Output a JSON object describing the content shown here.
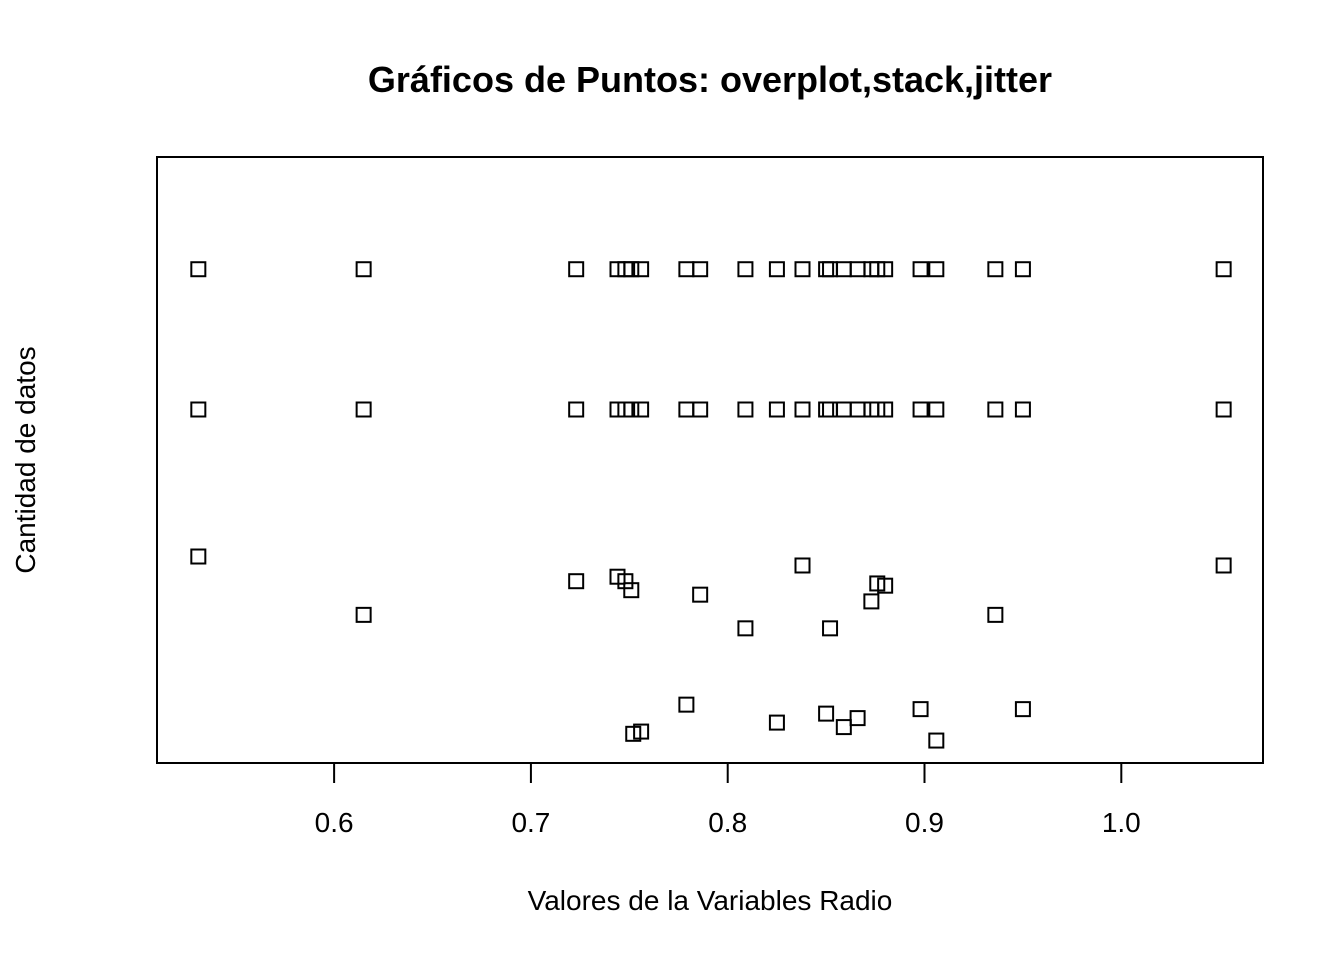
{
  "chart_data": {
    "type": "scatter",
    "title": "Gráficos de Puntos: overplot,stack,jitter",
    "xlabel": "Valores de la Variables Radio",
    "ylabel": "Cantidad de datos",
    "xlim": [
      0.51,
      1.072
    ],
    "x_ticks": [
      0.6,
      0.7,
      0.8,
      0.9,
      1.0
    ],
    "x_tick_labels": [
      "0.6",
      "0.7",
      "0.8",
      "0.9",
      "1.0"
    ],
    "ylim": [
      0.8,
      3.5
    ],
    "y_axis_shown": false,
    "grid": false,
    "legend": "none",
    "marker": "open-square",
    "series": [
      {
        "method": "overplot",
        "points": [
          {
            "x": 0.531,
            "y": 3.0
          },
          {
            "x": 0.615,
            "y": 3.0
          },
          {
            "x": 0.723,
            "y": 3.0
          },
          {
            "x": 0.744,
            "y": 3.0
          },
          {
            "x": 0.748,
            "y": 3.0
          },
          {
            "x": 0.751,
            "y": 3.0
          },
          {
            "x": 0.756,
            "y": 3.0
          },
          {
            "x": 0.779,
            "y": 3.0
          },
          {
            "x": 0.786,
            "y": 3.0
          },
          {
            "x": 0.809,
            "y": 3.0
          },
          {
            "x": 0.825,
            "y": 3.0
          },
          {
            "x": 0.838,
            "y": 3.0
          },
          {
            "x": 0.85,
            "y": 3.0
          },
          {
            "x": 0.852,
            "y": 3.0
          },
          {
            "x": 0.859,
            "y": 3.0
          },
          {
            "x": 0.866,
            "y": 3.0
          },
          {
            "x": 0.873,
            "y": 3.0
          },
          {
            "x": 0.876,
            "y": 3.0
          },
          {
            "x": 0.88,
            "y": 3.0
          },
          {
            "x": 0.898,
            "y": 3.0
          },
          {
            "x": 0.906,
            "y": 3.0
          },
          {
            "x": 0.936,
            "y": 3.0
          },
          {
            "x": 0.95,
            "y": 3.0
          },
          {
            "x": 1.052,
            "y": 3.0
          }
        ]
      },
      {
        "method": "stack",
        "points": [
          {
            "x": 0.531,
            "y": 2.375
          },
          {
            "x": 0.615,
            "y": 2.375
          },
          {
            "x": 0.723,
            "y": 2.375
          },
          {
            "x": 0.744,
            "y": 2.375
          },
          {
            "x": 0.748,
            "y": 2.375
          },
          {
            "x": 0.751,
            "y": 2.375
          },
          {
            "x": 0.756,
            "y": 2.375
          },
          {
            "x": 0.779,
            "y": 2.375
          },
          {
            "x": 0.786,
            "y": 2.375
          },
          {
            "x": 0.809,
            "y": 2.375
          },
          {
            "x": 0.825,
            "y": 2.375
          },
          {
            "x": 0.838,
            "y": 2.375
          },
          {
            "x": 0.85,
            "y": 2.375
          },
          {
            "x": 0.852,
            "y": 2.375
          },
          {
            "x": 0.859,
            "y": 2.375
          },
          {
            "x": 0.866,
            "y": 2.375
          },
          {
            "x": 0.873,
            "y": 2.375
          },
          {
            "x": 0.876,
            "y": 2.375
          },
          {
            "x": 0.88,
            "y": 2.375
          },
          {
            "x": 0.898,
            "y": 2.375
          },
          {
            "x": 0.906,
            "y": 2.375
          },
          {
            "x": 0.936,
            "y": 2.375
          },
          {
            "x": 0.95,
            "y": 2.375
          },
          {
            "x": 1.052,
            "y": 2.375
          }
        ]
      },
      {
        "method": "jitter",
        "points": [
          {
            "x": 0.531,
            "y": 1.72
          },
          {
            "x": 0.615,
            "y": 1.46
          },
          {
            "x": 0.723,
            "y": 1.61
          },
          {
            "x": 0.744,
            "y": 1.63
          },
          {
            "x": 0.748,
            "y": 1.61
          },
          {
            "x": 0.751,
            "y": 1.57
          },
          {
            "x": 0.752,
            "y": 0.93
          },
          {
            "x": 0.756,
            "y": 0.94
          },
          {
            "x": 0.779,
            "y": 1.06
          },
          {
            "x": 0.786,
            "y": 1.55
          },
          {
            "x": 0.809,
            "y": 1.4
          },
          {
            "x": 0.825,
            "y": 0.98
          },
          {
            "x": 0.838,
            "y": 1.68
          },
          {
            "x": 0.85,
            "y": 1.02
          },
          {
            "x": 0.852,
            "y": 1.4
          },
          {
            "x": 0.859,
            "y": 0.96
          },
          {
            "x": 0.866,
            "y": 1.0
          },
          {
            "x": 0.873,
            "y": 1.52
          },
          {
            "x": 0.876,
            "y": 1.6
          },
          {
            "x": 0.88,
            "y": 1.59
          },
          {
            "x": 0.898,
            "y": 1.04
          },
          {
            "x": 0.906,
            "y": 0.9
          },
          {
            "x": 0.936,
            "y": 1.46
          },
          {
            "x": 0.95,
            "y": 1.04
          },
          {
            "x": 1.052,
            "y": 1.68
          }
        ]
      }
    ]
  }
}
